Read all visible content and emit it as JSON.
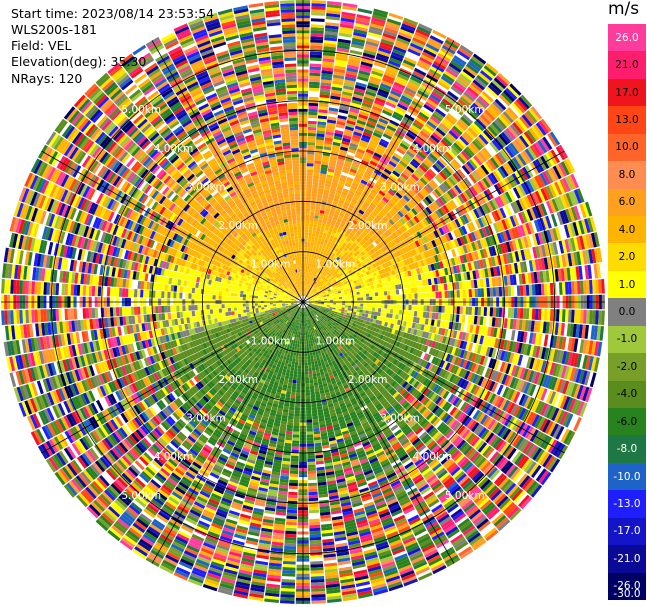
{
  "header": {
    "start_time": "Start time: 2023/08/14 23:53:54",
    "instrument": "WLS200s-181",
    "field": "Field: VEL",
    "elevation": "Elevation(deg): 35.30",
    "nrays": "NRays: 120"
  },
  "chart_data": {
    "type": "ppi",
    "field": "VEL",
    "units": "m/s",
    "n_rays": 120,
    "elevation_deg": 35.3,
    "range_rings_km": [
      1.0,
      2.0,
      3.0,
      4.0,
      5.0
    ],
    "ring_labels": [
      "1.00km",
      "2.00km",
      "3.00km",
      "4.00km",
      "5.00km"
    ],
    "max_range_km": 6.0,
    "colorbar": {
      "title": "m/s",
      "ticks": [
        "26.0",
        "21.0",
        "17.0",
        "13.0",
        "10.0",
        "8.0",
        "6.0",
        "4.0",
        "2.0",
        "1.0",
        "0.0",
        "-1.0",
        "-2.0",
        "-4.0",
        "-6.0",
        "-8.0",
        "-10.0",
        "-13.0",
        "-17.0",
        "-21.0",
        "-26.0",
        "-30.0"
      ],
      "colors": [
        "#ff3c9c",
        "#ff1e6e",
        "#f0141e",
        "#ff4614",
        "#ff6428",
        "#ff8c50",
        "#ffa01e",
        "#ffb400",
        "#ffdc00",
        "#ffff00",
        "#808080",
        "#a0c83c",
        "#78a028",
        "#5a8c1e",
        "#28821e",
        "#1e7846",
        "#1e64c8",
        "#1e1eff",
        "#1414c8",
        "#0a0a96",
        "#000064"
      ]
    },
    "wind_pattern": {
      "near_range_positive_toward": "north",
      "near_range_negative_toward": "south",
      "far_range": "noisy / aliased"
    }
  }
}
